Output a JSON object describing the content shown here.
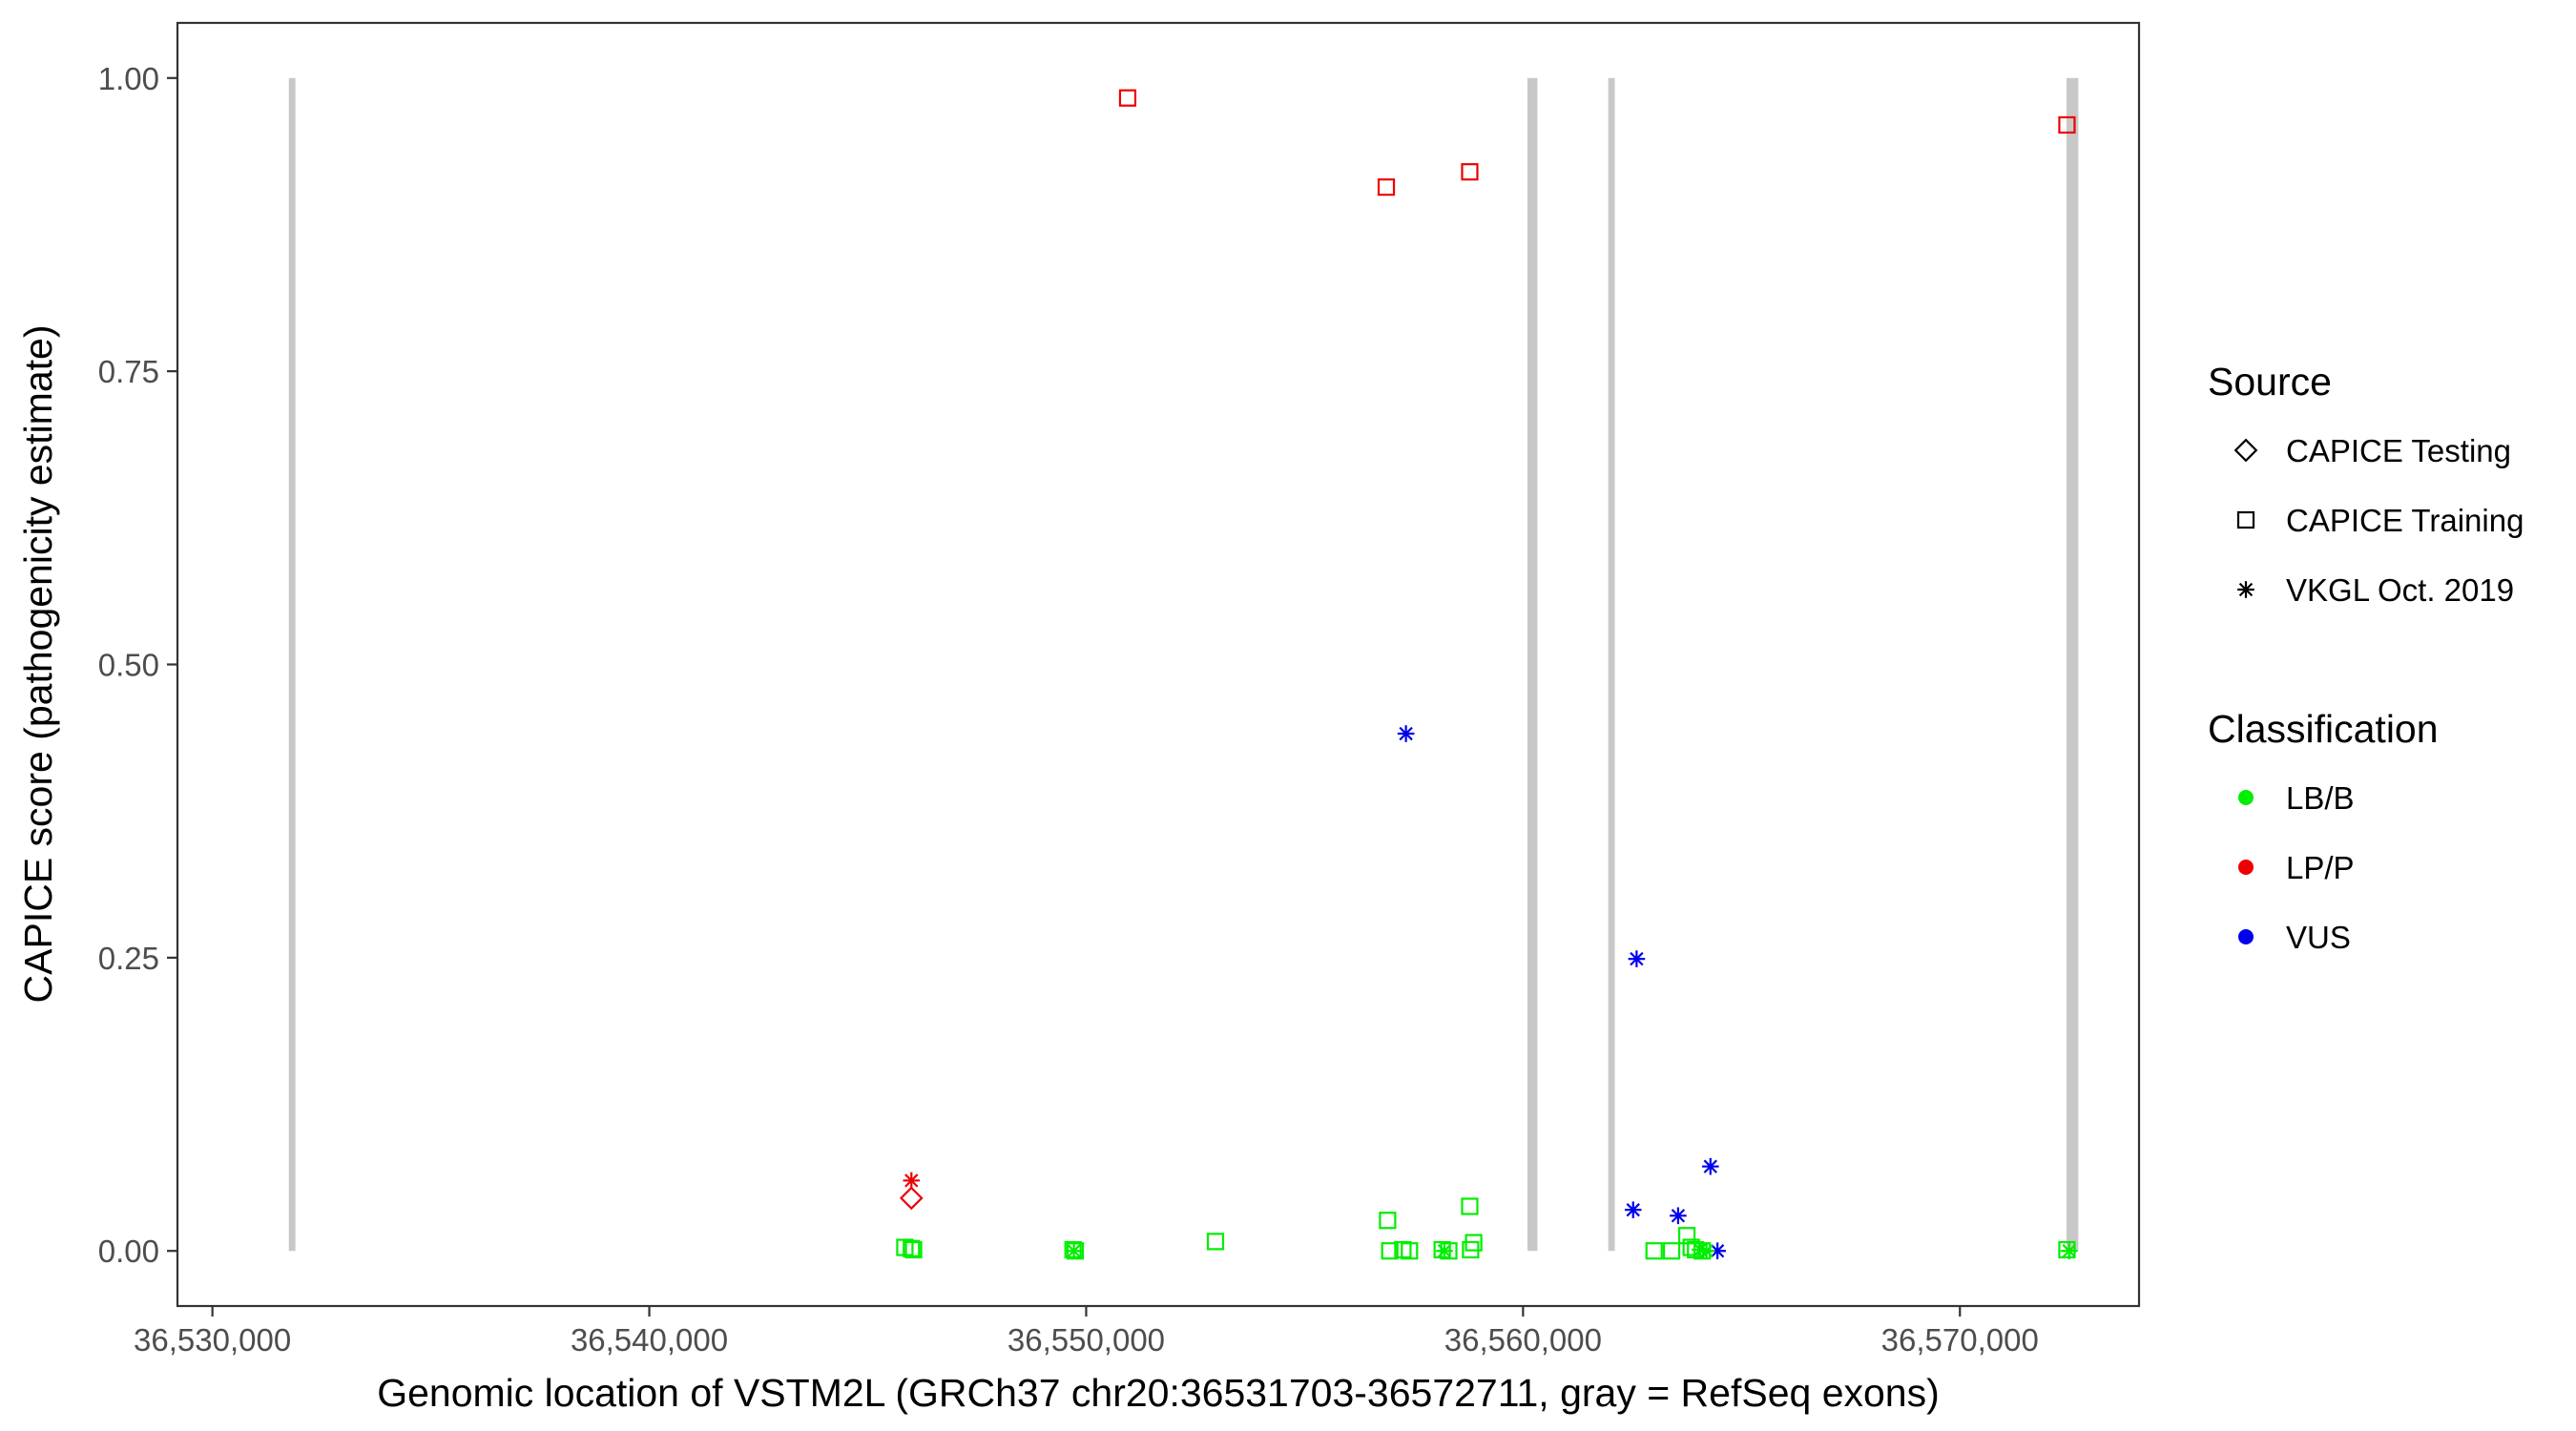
{
  "chart_data": {
    "type": "scatter",
    "title": "",
    "xlabel": "Genomic location of VSTM2L (GRCh37 chr20:36531703-36572711, gray = RefSeq exons)",
    "ylabel": "CAPICE score (pathogenicity estimate)",
    "xlim": [
      36529200,
      36574100
    ],
    "ylim": [
      -0.047,
      1.047
    ],
    "x_ticks": [
      36530000,
      36540000,
      36550000,
      36560000,
      36570000
    ],
    "x_tick_labels": [
      "36,530,000",
      "36,540,000",
      "36,550,000",
      "36,560,000",
      "36,570,000"
    ],
    "y_ticks": [
      0,
      0.25,
      0.5,
      0.75,
      1.0
    ],
    "y_tick_labels": [
      "0.00",
      "0.25",
      "0.50",
      "0.75",
      "1.00"
    ],
    "grid": false,
    "exons": [
      {
        "start": 36531750,
        "end": 36531900
      },
      {
        "start": 36560100,
        "end": 36560330
      },
      {
        "start": 36561950,
        "end": 36562100
      },
      {
        "start": 36572440,
        "end": 36572711
      }
    ],
    "exon_color": "#c8c8c8",
    "legend": {
      "position": "right",
      "source": {
        "title": "Source",
        "items": [
          {
            "label": "CAPICE Testing",
            "shape": "diamond"
          },
          {
            "label": "CAPICE Training",
            "shape": "square"
          },
          {
            "label": "VKGL Oct. 2019",
            "shape": "asterisk"
          }
        ]
      },
      "classification": {
        "title": "Classification",
        "items": [
          {
            "label": "LB/B",
            "color": "#00ee00"
          },
          {
            "label": "LP/P",
            "color": "#ee0000"
          },
          {
            "label": "VUS",
            "color": "#0000ee"
          }
        ]
      }
    },
    "points": [
      {
        "x": 36550950,
        "y": 0.983,
        "source": "CAPICE Training",
        "class": "LP/P"
      },
      {
        "x": 36556870,
        "y": 0.907,
        "source": "CAPICE Training",
        "class": "LP/P"
      },
      {
        "x": 36558780,
        "y": 0.92,
        "source": "CAPICE Training",
        "class": "LP/P"
      },
      {
        "x": 36572450,
        "y": 0.96,
        "source": "CAPICE Training",
        "class": "LP/P"
      },
      {
        "x": 36546000,
        "y": 0.06,
        "source": "VKGL Oct. 2019",
        "class": "LP/P"
      },
      {
        "x": 36546000,
        "y": 0.045,
        "source": "CAPICE Testing",
        "class": "LP/P"
      },
      {
        "x": 36557320,
        "y": 0.441,
        "source": "VKGL Oct. 2019",
        "class": "VUS"
      },
      {
        "x": 36562600,
        "y": 0.249,
        "source": "VKGL Oct. 2019",
        "class": "VUS"
      },
      {
        "x": 36564290,
        "y": 0.072,
        "source": "VKGL Oct. 2019",
        "class": "VUS"
      },
      {
        "x": 36562520,
        "y": 0.035,
        "source": "VKGL Oct. 2019",
        "class": "VUS"
      },
      {
        "x": 36563550,
        "y": 0.03,
        "source": "VKGL Oct. 2019",
        "class": "VUS"
      },
      {
        "x": 36564450,
        "y": 0.0,
        "source": "VKGL Oct. 2019",
        "class": "VUS"
      },
      {
        "x": 36545850,
        "y": 0.003,
        "source": "CAPICE Training",
        "class": "LB/B"
      },
      {
        "x": 36546000,
        "y": 0.002,
        "source": "CAPICE Training",
        "class": "LB/B"
      },
      {
        "x": 36546050,
        "y": 0.001,
        "source": "CAPICE Training",
        "class": "LB/B"
      },
      {
        "x": 36549700,
        "y": 0.001,
        "source": "CAPICE Training",
        "class": "LB/B"
      },
      {
        "x": 36549750,
        "y": 0.0,
        "source": "CAPICE Training",
        "class": "LB/B"
      },
      {
        "x": 36549720,
        "y": 0.0,
        "source": "VKGL Oct. 2019",
        "class": "LB/B"
      },
      {
        "x": 36552960,
        "y": 0.008,
        "source": "CAPICE Training",
        "class": "LB/B"
      },
      {
        "x": 36556900,
        "y": 0.026,
        "source": "CAPICE Training",
        "class": "LB/B"
      },
      {
        "x": 36556950,
        "y": 0.0,
        "source": "CAPICE Training",
        "class": "LB/B"
      },
      {
        "x": 36557250,
        "y": 0.001,
        "source": "CAPICE Training",
        "class": "LB/B"
      },
      {
        "x": 36557400,
        "y": 0.0,
        "source": "CAPICE Training",
        "class": "LB/B"
      },
      {
        "x": 36558150,
        "y": 0.001,
        "source": "CAPICE Training",
        "class": "LB/B"
      },
      {
        "x": 36558300,
        "y": 0.0,
        "source": "CAPICE Training",
        "class": "LB/B"
      },
      {
        "x": 36558200,
        "y": 0.0,
        "source": "VKGL Oct. 2019",
        "class": "LB/B"
      },
      {
        "x": 36558780,
        "y": 0.038,
        "source": "CAPICE Training",
        "class": "LB/B"
      },
      {
        "x": 36558870,
        "y": 0.007,
        "source": "CAPICE Training",
        "class": "LB/B"
      },
      {
        "x": 36558800,
        "y": 0.001,
        "source": "CAPICE Training",
        "class": "LB/B"
      },
      {
        "x": 36563000,
        "y": 0.0,
        "source": "CAPICE Training",
        "class": "LB/B"
      },
      {
        "x": 36563400,
        "y": 0.0,
        "source": "CAPICE Training",
        "class": "LB/B"
      },
      {
        "x": 36563750,
        "y": 0.013,
        "source": "CAPICE Training",
        "class": "LB/B"
      },
      {
        "x": 36563850,
        "y": 0.003,
        "source": "CAPICE Training",
        "class": "LB/B"
      },
      {
        "x": 36563950,
        "y": 0.001,
        "source": "CAPICE Training",
        "class": "LB/B"
      },
      {
        "x": 36564100,
        "y": 0.0,
        "source": "CAPICE Training",
        "class": "LB/B"
      },
      {
        "x": 36564050,
        "y": 0.001,
        "source": "VKGL Oct. 2019",
        "class": "LB/B"
      },
      {
        "x": 36564200,
        "y": 0.0,
        "source": "VKGL Oct. 2019",
        "class": "LB/B"
      },
      {
        "x": 36572450,
        "y": 0.001,
        "source": "CAPICE Training",
        "class": "LB/B"
      },
      {
        "x": 36572500,
        "y": 0.0,
        "source": "VKGL Oct. 2019",
        "class": "LB/B"
      }
    ]
  }
}
